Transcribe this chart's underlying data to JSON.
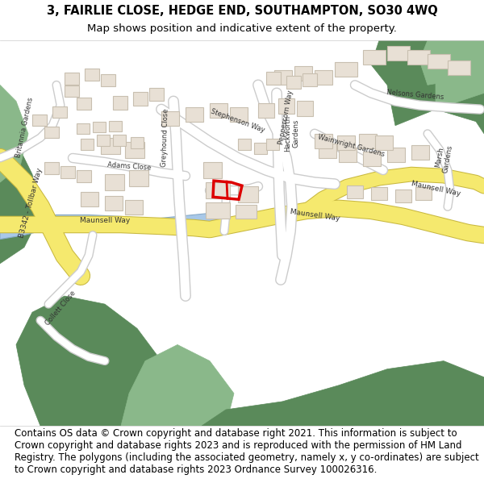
{
  "title_line1": "3, FAIRLIE CLOSE, HEDGE END, SOUTHAMPTON, SO30 4WQ",
  "title_line2": "Map shows position and indicative extent of the property.",
  "footer_text": "Contains OS data © Crown copyright and database right 2021. This information is subject to Crown copyright and database rights 2023 and is reproduced with the permission of HM Land Registry. The polygons (including the associated geometry, namely x, y co-ordinates) are subject to Crown copyright and database rights 2023 Ordnance Survey 100026316.",
  "title_fontsize": 10.5,
  "subtitle_fontsize": 9.5,
  "footer_fontsize": 8.5,
  "fig_width": 6.0,
  "fig_height": 6.25,
  "map_bg": "#f0ede8",
  "road_yellow": "#f5e96e",
  "road_white": "#ffffff",
  "building_fill": "#e8e0d5",
  "building_edge": "#c8bfb0",
  "green_dark": "#5a8a5a",
  "green_light": "#8ab88a",
  "water_blue": "#a8c8e8",
  "highlight_red": "#dd0000",
  "road_stroke": "#d4c870",
  "header_bg": "#ffffff",
  "footer_bg": "#ffffff"
}
